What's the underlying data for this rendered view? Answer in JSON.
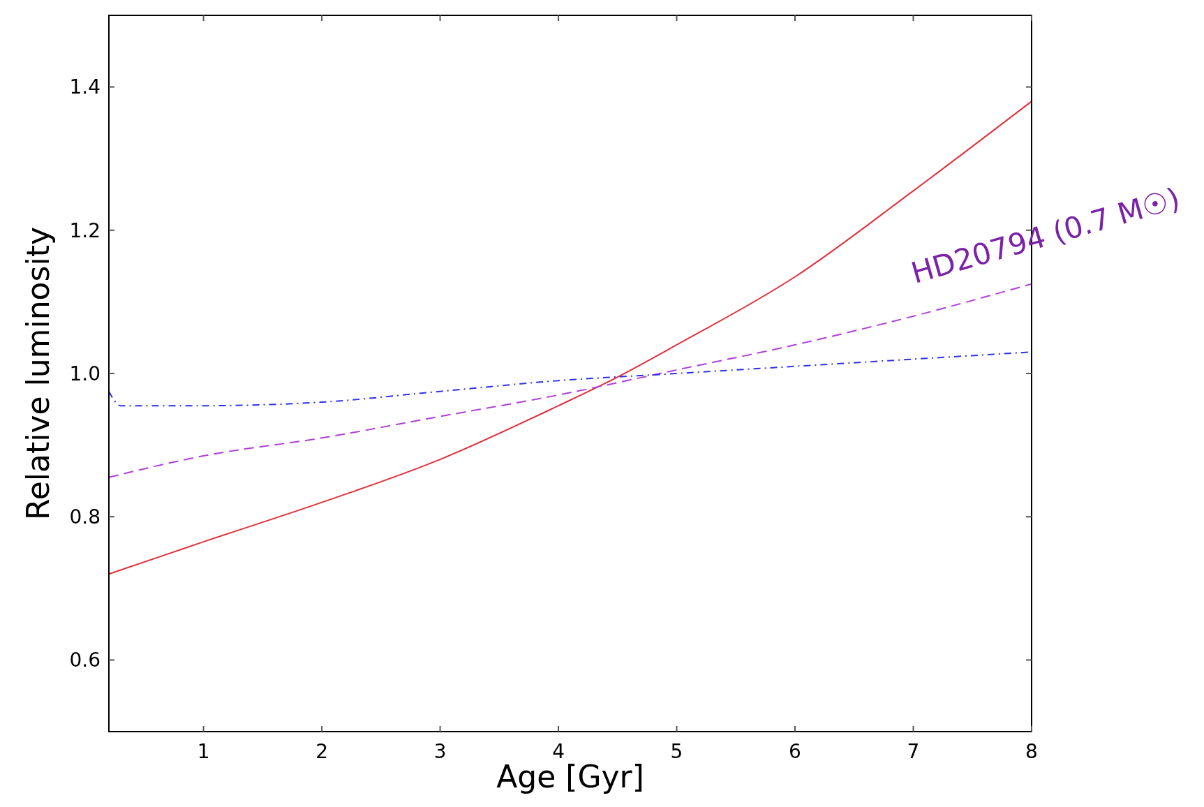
{
  "chart_data": {
    "type": "line",
    "xlabel": "Age [Gyr]",
    "ylabel": "Relative luminosity",
    "xlim": [
      0.2,
      8
    ],
    "ylim": [
      0.5,
      1.5
    ],
    "xticks": [
      1,
      2,
      3,
      4,
      5,
      6,
      7,
      8
    ],
    "yticks": [
      {
        "value": 0.6,
        "label": "0.6"
      },
      {
        "value": 0.8,
        "label": "0.8"
      },
      {
        "value": 1,
        "label": "1.0"
      },
      {
        "value": 1.2,
        "label": "1.2"
      },
      {
        "value": 1.4,
        "label": "1.4"
      }
    ],
    "grid": false,
    "marker": "none",
    "series": [
      {
        "color": "#e0303a",
        "line_style": "solid",
        "x": [
          0.2,
          1,
          2,
          3,
          4,
          4.5,
          5,
          6,
          7,
          8
        ],
        "values": [
          0.72,
          0.765,
          0.82,
          0.88,
          0.955,
          0.995,
          1.04,
          1.135,
          1.255,
          1.38
        ]
      },
      {
        "name": "HD20794 (0.7 M☉)",
        "color": "#b040d8",
        "line_style": "dashed",
        "x": [
          0.2,
          1,
          2,
          3,
          4,
          5,
          6,
          7,
          8
        ],
        "values": [
          0.855,
          0.885,
          0.91,
          0.94,
          0.97,
          1.005,
          1.04,
          1.08,
          1.125
        ]
      },
      {
        "color": "#3030e8",
        "line_style": "dashdot",
        "x": [
          0.2,
          0.3,
          1,
          2,
          3,
          4,
          5,
          6,
          7,
          8
        ],
        "values": [
          0.975,
          0.955,
          0.955,
          0.96,
          0.975,
          0.99,
          1.0,
          1.01,
          1.02,
          1.03
        ]
      }
    ]
  }
}
